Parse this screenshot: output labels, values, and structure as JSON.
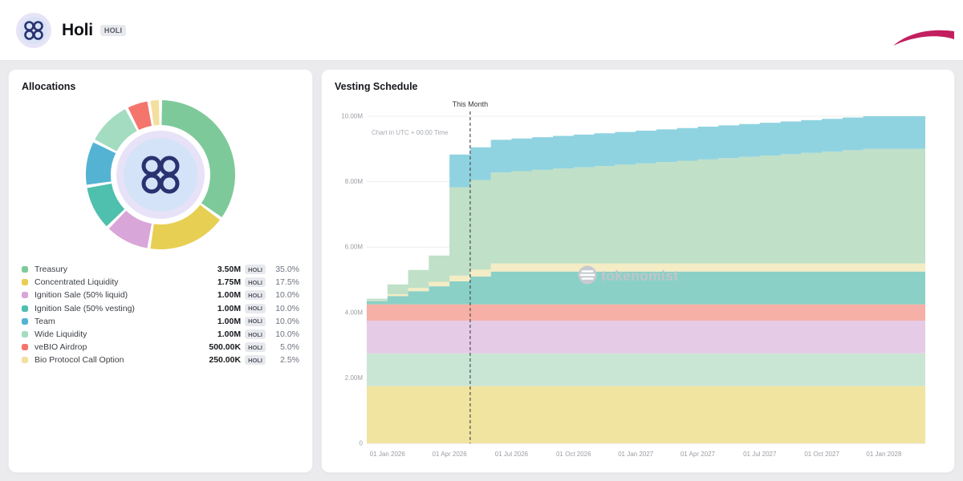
{
  "header": {
    "title": "Holi",
    "ticker_badge": "HOLI"
  },
  "allocations": {
    "title": "Allocations",
    "items": [
      {
        "label": "Treasury",
        "amount": "3.50M",
        "ticker": "HOLI",
        "percent": "35.0%",
        "color": "#7ec99a"
      },
      {
        "label": "Concentrated Liquidity",
        "amount": "1.75M",
        "ticker": "HOLI",
        "percent": "17.5%",
        "color": "#e7cf54"
      },
      {
        "label": "Ignition Sale (50% liquid)",
        "amount": "1.00M",
        "ticker": "HOLI",
        "percent": "10.0%",
        "color": "#d9a6d9"
      },
      {
        "label": "Ignition Sale (50% vesting)",
        "amount": "1.00M",
        "ticker": "HOLI",
        "percent": "10.0%",
        "color": "#4fbfae"
      },
      {
        "label": "Team",
        "amount": "1.00M",
        "ticker": "HOLI",
        "percent": "10.0%",
        "color": "#54b3d3"
      },
      {
        "label": "Wide Liquidity",
        "amount": "1.00M",
        "ticker": "HOLI",
        "percent": "10.0%",
        "color": "#a3dcc0"
      },
      {
        "label": "veBIO Airdrop",
        "amount": "500.00K",
        "ticker": "HOLI",
        "percent": "5.0%",
        "color": "#f4756c"
      },
      {
        "label": "Bio Protocol Call Option",
        "amount": "250.00K",
        "ticker": "HOLI",
        "percent": "2.5%",
        "color": "#f3df9e"
      }
    ]
  },
  "vesting": {
    "title": "Vesting Schedule",
    "utc_note": "Chart in UTC + 00:00 Time",
    "watermark": "tokenomist"
  },
  "chart_data": [
    {
      "type": "pie",
      "title": "Allocations",
      "labels": [
        "Treasury",
        "Concentrated Liquidity",
        "Ignition Sale (50% liquid)",
        "Ignition Sale (50% vesting)",
        "Team",
        "Wide Liquidity",
        "veBIO Airdrop",
        "Bio Protocol Call Option"
      ],
      "values": [
        35,
        17.5,
        10,
        10,
        10,
        10,
        5,
        2.5
      ],
      "unit": "percent",
      "colors": [
        "#7ec99a",
        "#e7cf54",
        "#d9a6d9",
        "#4fbfae",
        "#54b3d3",
        "#a3dcc0",
        "#f4756c",
        "#f3df9e"
      ]
    },
    {
      "type": "area",
      "stacked": true,
      "title": "Vesting Schedule",
      "x_unit": "month",
      "x_start": "2025-12",
      "months": 27,
      "ylim": [
        0,
        10
      ],
      "y_unit": "millions of HOLI",
      "grid": "horizontal",
      "xticks": [
        {
          "label": "01 Jan 2026",
          "index": 1
        },
        {
          "label": "01 Apr 2026",
          "index": 4
        },
        {
          "label": "01 Jul 2026",
          "index": 7
        },
        {
          "label": "01 Oct 2026",
          "index": 10
        },
        {
          "label": "01 Jan 2027",
          "index": 13
        },
        {
          "label": "01 Apr 2027",
          "index": 16
        },
        {
          "label": "01 Jul 2027",
          "index": 19
        },
        {
          "label": "01 Oct 2027",
          "index": 22
        },
        {
          "label": "01 Jan 2028",
          "index": 25
        }
      ],
      "yticks": [
        {
          "label": "0",
          "value": 0
        },
        {
          "label": "2.00M",
          "value": 2
        },
        {
          "label": "4.00M",
          "value": 4
        },
        {
          "label": "6.00M",
          "value": 6
        },
        {
          "label": "8.00M",
          "value": 8
        },
        {
          "label": "10.00M",
          "value": 10
        }
      ],
      "this_month": {
        "label": "This Month",
        "index": 5
      },
      "series": [
        {
          "name": "Concentrated Liquidity",
          "color": "#f1e4a0",
          "values": [
            1.75,
            1.75,
            1.75,
            1.75,
            1.75,
            1.75,
            1.75,
            1.75,
            1.75,
            1.75,
            1.75,
            1.75,
            1.75,
            1.75,
            1.75,
            1.75,
            1.75,
            1.75,
            1.75,
            1.75,
            1.75,
            1.75,
            1.75,
            1.75,
            1.75,
            1.75,
            1.75
          ]
        },
        {
          "name": "Wide Liquidity",
          "color": "#c9e6d5",
          "values": [
            1,
            1,
            1,
            1,
            1,
            1,
            1,
            1,
            1,
            1,
            1,
            1,
            1,
            1,
            1,
            1,
            1,
            1,
            1,
            1,
            1,
            1,
            1,
            1,
            1,
            1,
            1
          ]
        },
        {
          "name": "Ignition Sale (50% liquid)",
          "color": "#e6cbe7",
          "values": [
            1,
            1,
            1,
            1,
            1,
            1,
            1,
            1,
            1,
            1,
            1,
            1,
            1,
            1,
            1,
            1,
            1,
            1,
            1,
            1,
            1,
            1,
            1,
            1,
            1,
            1,
            1
          ]
        },
        {
          "name": "veBIO Airdrop",
          "color": "#f7b0a7",
          "values": [
            0.5,
            0.5,
            0.5,
            0.5,
            0.5,
            0.5,
            0.5,
            0.5,
            0.5,
            0.5,
            0.5,
            0.5,
            0.5,
            0.5,
            0.5,
            0.5,
            0.5,
            0.5,
            0.5,
            0.5,
            0.5,
            0.5,
            0.5,
            0.5,
            0.5,
            0.5,
            0.5
          ]
        },
        {
          "name": "Ignition Sale (50% vesting)",
          "color": "#8ad0c6",
          "values": [
            0.1,
            0.25,
            0.4,
            0.55,
            0.7,
            0.85,
            1,
            1,
            1,
            1,
            1,
            1,
            1,
            1,
            1,
            1,
            1,
            1,
            1,
            1,
            1,
            1,
            1,
            1,
            1,
            1,
            1
          ]
        },
        {
          "name": "Bio Protocol Call Option",
          "color": "#f3ecc4",
          "values": [
            0.02,
            0.06,
            0.1,
            0.14,
            0.18,
            0.21,
            0.25,
            0.25,
            0.25,
            0.25,
            0.25,
            0.25,
            0.25,
            0.25,
            0.25,
            0.25,
            0.25,
            0.25,
            0.25,
            0.25,
            0.25,
            0.25,
            0.25,
            0.25,
            0.25,
            0.25,
            0.25
          ]
        },
        {
          "name": "Treasury",
          "color": "#c0e0c8",
          "values": [
            0.05,
            0.3,
            0.55,
            0.8,
            2.7,
            2.74,
            2.78,
            2.82,
            2.86,
            2.9,
            2.94,
            2.98,
            3.02,
            3.06,
            3.1,
            3.14,
            3.18,
            3.22,
            3.26,
            3.3,
            3.34,
            3.38,
            3.42,
            3.46,
            3.5,
            3.5,
            3.5
          ]
        },
        {
          "name": "Team",
          "color": "#90d3e0",
          "values": [
            0,
            0,
            0,
            0,
            1,
            1,
            1,
            1,
            1,
            1,
            1,
            1,
            1,
            1,
            1,
            1,
            1,
            1,
            1,
            1,
            1,
            1,
            1,
            1,
            1,
            1,
            1
          ]
        }
      ]
    }
  ]
}
